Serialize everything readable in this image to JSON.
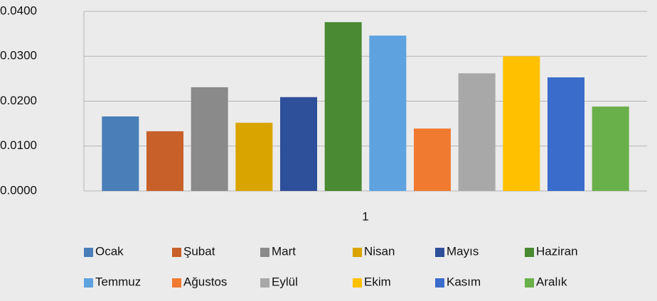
{
  "chart_data": {
    "type": "bar",
    "categories": [
      "1"
    ],
    "series": [
      {
        "name": "Ocak",
        "color": "#4a7eb8",
        "values": [
          0.0166
        ]
      },
      {
        "name": "Şubat",
        "color": "#c8602a",
        "values": [
          0.0133
        ]
      },
      {
        "name": "Mart",
        "color": "#8a8a8a",
        "values": [
          0.0231
        ]
      },
      {
        "name": "Nisan",
        "color": "#d9a400",
        "values": [
          0.0152
        ]
      },
      {
        "name": "Mayıs",
        "color": "#2e4f9a",
        "values": [
          0.0209
        ]
      },
      {
        "name": "Haziran",
        "color": "#4a8a32",
        "values": [
          0.0376
        ]
      },
      {
        "name": "Temmuz",
        "color": "#5ea2e0",
        "values": [
          0.0346
        ]
      },
      {
        "name": "Ağustos",
        "color": "#f07a30",
        "values": [
          0.0139
        ]
      },
      {
        "name": "Eylül",
        "color": "#a8a8a8",
        "values": [
          0.0262
        ]
      },
      {
        "name": "Ekim",
        "color": "#ffc000",
        "values": [
          0.03
        ]
      },
      {
        "name": "Kasım",
        "color": "#3a6ccc",
        "values": [
          0.0253
        ]
      },
      {
        "name": "Aralık",
        "color": "#6ab04a",
        "values": [
          0.0188
        ]
      }
    ],
    "ylim": [
      0,
      0.04
    ],
    "yticks": [
      {
        "value": 0,
        "label": "0.0000"
      },
      {
        "value": 0.01,
        "label": "0.0100"
      },
      {
        "value": 0.02,
        "label": "0.0200"
      },
      {
        "value": 0.03,
        "label": "0.0300"
      },
      {
        "value": 0.04,
        "label": "0.0400"
      }
    ],
    "grid": true,
    "legend": "bottom"
  }
}
